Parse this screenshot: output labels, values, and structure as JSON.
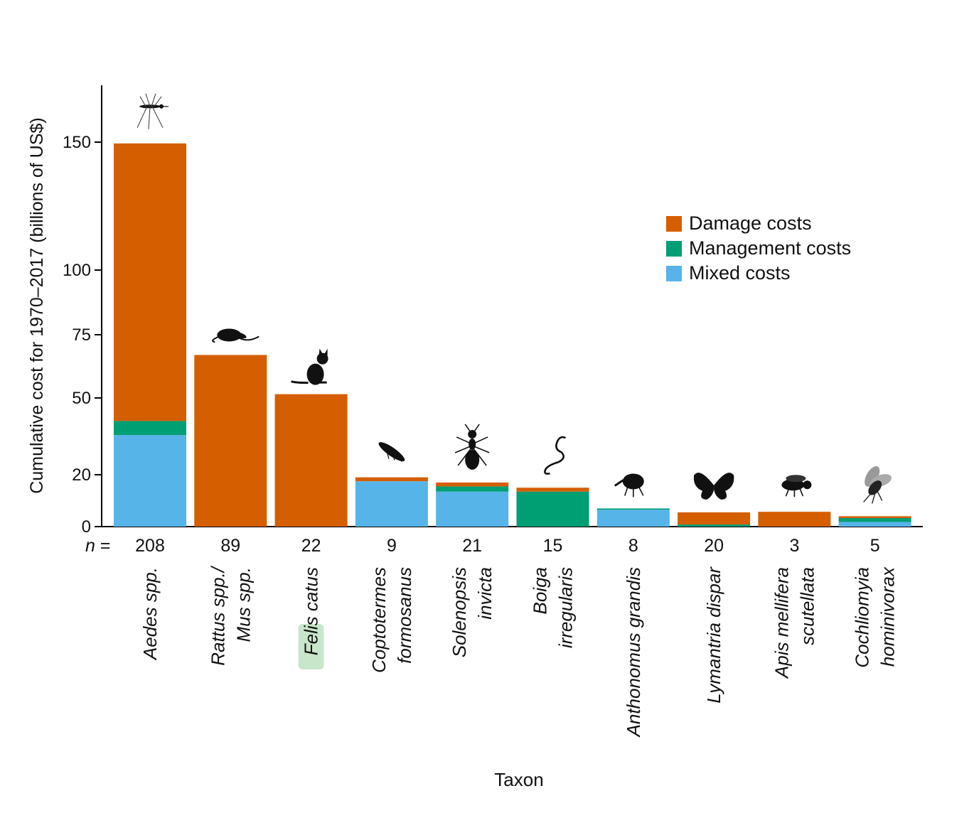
{
  "chart_data": {
    "type": "bar",
    "stacked": true,
    "xlabel": "Taxon",
    "ylabel": "Cumulative cost for 1970–2017 (billions of US$)",
    "yticks": [
      "0",
      "20",
      "50",
      "75",
      "100",
      "150"
    ],
    "n_prefix": "n =",
    "categories": [
      {
        "lines": [
          "Aedes spp."
        ],
        "n": "208",
        "icon": "mosquito-icon"
      },
      {
        "lines": [
          "Rattus spp./",
          "Mus spp."
        ],
        "n": "89",
        "icon": "rat-icon"
      },
      {
        "lines": [
          "Felis catus"
        ],
        "n": "22",
        "icon": "cat-icon",
        "highlighted": true
      },
      {
        "lines": [
          "Coptotermes",
          "formosanus"
        ],
        "n": "9",
        "icon": "termite-icon"
      },
      {
        "lines": [
          "Solenopsis",
          "invicta"
        ],
        "n": "21",
        "icon": "ant-icon"
      },
      {
        "lines": [
          "Boiga",
          "irregularis"
        ],
        "n": "15",
        "icon": "snake-icon"
      },
      {
        "lines": [
          "Anthonomus grandis"
        ],
        "n": "8",
        "icon": "weevil-icon"
      },
      {
        "lines": [
          "Lymantria dispar"
        ],
        "n": "20",
        "icon": "moth-icon"
      },
      {
        "lines": [
          "Apis mellifera",
          "scutellata"
        ],
        "n": "3",
        "icon": "bee-icon"
      },
      {
        "lines": [
          "Cochliomyia",
          "hominivorax"
        ],
        "n": "5",
        "icon": "fly-icon"
      }
    ],
    "series": [
      {
        "name": "Mixed costs",
        "color": "#56B4E9",
        "values": [
          35.5,
          0,
          0,
          17.5,
          13.5,
          0,
          6.5,
          0,
          0,
          1.8
        ]
      },
      {
        "name": "Management costs",
        "color": "#009E73",
        "values": [
          5.5,
          0,
          0,
          0,
          2,
          13.5,
          0.5,
          0.8,
          0,
          1.5
        ]
      },
      {
        "name": "Damage costs",
        "color": "#D55E00",
        "values": [
          108.5,
          67,
          51.5,
          1.5,
          1.5,
          1.5,
          0,
          4.7,
          5.7,
          0.7
        ]
      }
    ],
    "legend": {
      "position": "right",
      "order": [
        "Damage costs",
        "Management costs",
        "Mixed costs"
      ]
    },
    "highlight_color": "#c8e6c9"
  }
}
